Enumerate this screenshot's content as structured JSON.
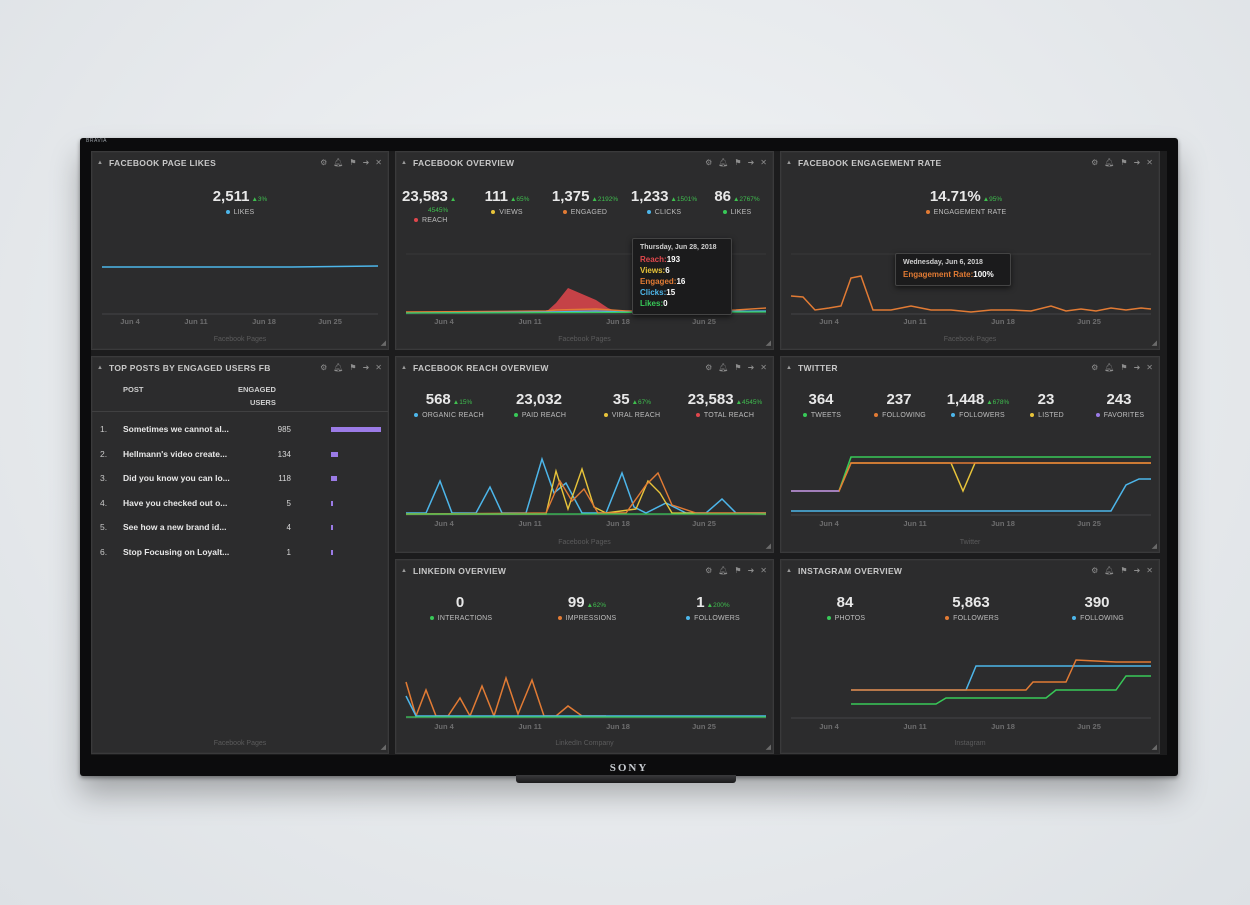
{
  "tv": {
    "brand_top": "BRAVIA",
    "brand_bottom": "SONY"
  },
  "colors": {
    "reach": "#e0474c",
    "views": "#e8c43a",
    "engaged": "#e27b34",
    "clicks": "#4db6ea",
    "likes": "#38c958",
    "purple": "#9b7be6",
    "blue": "#4db6ea",
    "green": "#38c958",
    "orange": "#e27b34",
    "yellow": "#e8c43a"
  },
  "x_ticks": [
    "Jun 4",
    "Jun 11",
    "Jun 18",
    "Jun 25"
  ],
  "fb_likes": {
    "title": "FACEBOOK PAGE LIKES",
    "value": "2,511",
    "change": "▲3%",
    "label": "LIKES",
    "footer": "Facebook Pages"
  },
  "fb_overview": {
    "title": "FACEBOOK OVERVIEW",
    "metrics": [
      {
        "value": "23,583",
        "change": "▲",
        "change2": "4545%",
        "label": "REACH"
      },
      {
        "value": "111",
        "change": "▲65%",
        "label": "VIEWS"
      },
      {
        "value": "1,375",
        "change": "▲2192%",
        "label": "ENGAGED"
      },
      {
        "value": "1,233",
        "change": "▲1501%",
        "label": "CLICKS"
      },
      {
        "value": "86",
        "change": "▲2767%",
        "label": "LIKES"
      }
    ],
    "tooltip": {
      "date": "Thursday, Jun 28, 2018",
      "rows": [
        {
          "name": "Reach",
          "value": "193"
        },
        {
          "name": "Views",
          "value": "6"
        },
        {
          "name": "Engaged",
          "value": "16"
        },
        {
          "name": "Clicks",
          "value": "15"
        },
        {
          "name": "Likes",
          "value": "0"
        }
      ]
    },
    "footer": "Facebook Pages"
  },
  "fb_engagement": {
    "title": "FACEBOOK ENGAGEMENT RATE",
    "value": "14.71%",
    "change": "▲95%",
    "label": "ENGAGEMENT RATE",
    "tooltip": {
      "date": "Wednesday, Jun 6, 2018",
      "name": "Engagement Rate",
      "value": "100%"
    },
    "footer": "Facebook Pages"
  },
  "top_posts": {
    "title": "TOP POSTS BY ENGAGED USERS FB",
    "col_post": "POST",
    "col_engaged_1": "ENGAGED",
    "col_engaged_2": "USERS",
    "rows": [
      {
        "num": "1.",
        "text": "Sometimes we cannot al...",
        "value": 985
      },
      {
        "num": "2.",
        "text": "Hellmann's video create...",
        "value": 134
      },
      {
        "num": "3.",
        "text": "Did you know you can lo...",
        "value": 118
      },
      {
        "num": "4.",
        "text": "Have you checked out o...",
        "value": 5
      },
      {
        "num": "5.",
        "text": "See how a new brand id...",
        "value": 4
      },
      {
        "num": "6.",
        "text": "Stop Focusing on Loyalt...",
        "value": 1
      }
    ],
    "footer": "Facebook Pages"
  },
  "fb_reach": {
    "title": "FACEBOOK REACH OVERVIEW",
    "metrics": [
      {
        "value": "568",
        "change": "▲15%",
        "label": "ORGANIC REACH"
      },
      {
        "value": "23,032",
        "change": "",
        "label": "PAID REACH"
      },
      {
        "value": "35",
        "change": "▲67%",
        "label": "VIRAL REACH"
      },
      {
        "value": "23,583",
        "change": "▲4545%",
        "label": "TOTAL REACH"
      }
    ],
    "footer": "Facebook Pages"
  },
  "twitter": {
    "title": "TWITTER",
    "metrics": [
      {
        "value": "364",
        "change": "",
        "label": "TWEETS"
      },
      {
        "value": "237",
        "change": "",
        "label": "FOLLOWING"
      },
      {
        "value": "1,448",
        "change": "▲678%",
        "label": "FOLLOWERS"
      },
      {
        "value": "23",
        "change": "",
        "label": "LISTED"
      },
      {
        "value": "243",
        "change": "",
        "label": "FAVORITES"
      }
    ],
    "footer": "Twitter"
  },
  "linkedin": {
    "title": "LINKEDIN OVERVIEW",
    "metrics": [
      {
        "value": "0",
        "change": "",
        "label": "INTERACTIONS"
      },
      {
        "value": "99",
        "change": "▲62%",
        "label": "IMPRESSIONS"
      },
      {
        "value": "1",
        "change": "▲200%",
        "label": "FOLLOWERS"
      }
    ],
    "footer": "LinkedIn Company"
  },
  "instagram": {
    "title": "INSTAGRAM OVERVIEW",
    "metrics": [
      {
        "value": "84",
        "change": "",
        "label": "PHOTOS"
      },
      {
        "value": "5,863",
        "change": "",
        "label": "FOLLOWERS"
      },
      {
        "value": "390",
        "change": "",
        "label": "FOLLOWING"
      }
    ],
    "footer": "Instagram"
  }
}
